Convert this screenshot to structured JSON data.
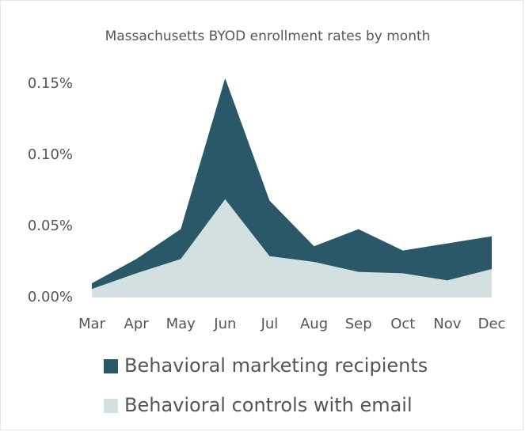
{
  "chart_data": {
    "type": "area",
    "title": "Massachusetts BYOD enrollment rates by month",
    "categories": [
      "Mar",
      "Apr",
      "May",
      "Jun",
      "Jul",
      "Aug",
      "Sep",
      "Oct",
      "Nov",
      "Dec"
    ],
    "series": [
      {
        "name": "Behavioral marketing recipients",
        "color": "#2a5868",
        "values": [
          0.01,
          0.027,
          0.048,
          0.154,
          0.068,
          0.036,
          0.048,
          0.033,
          0.038,
          0.043
        ]
      },
      {
        "name": "Behavioral controls with email",
        "color": "#d3e0e1",
        "values": [
          0.006,
          0.017,
          0.027,
          0.069,
          0.029,
          0.025,
          0.018,
          0.017,
          0.012,
          0.02
        ]
      }
    ],
    "ylim": [
      0,
      0.15
    ],
    "yticks": [
      {
        "value": 0,
        "label": "0.00%"
      },
      {
        "value": 0.05,
        "label": "0.05%"
      },
      {
        "value": 0.1,
        "label": "0.10%"
      },
      {
        "value": 0.15,
        "label": "0.15%"
      }
    ],
    "grid": false
  }
}
